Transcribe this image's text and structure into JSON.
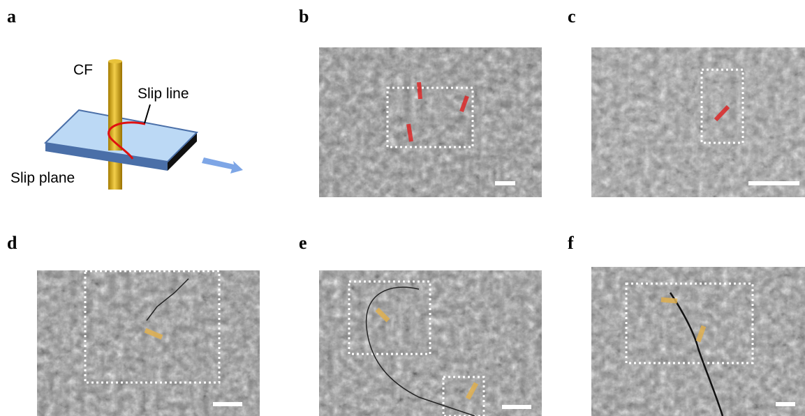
{
  "panels": [
    {
      "label": "a"
    },
    {
      "label": "b"
    },
    {
      "label": "c"
    },
    {
      "label": "d"
    },
    {
      "label": "e"
    },
    {
      "label": "f"
    }
  ],
  "diagram": {
    "rod_label": "CF",
    "line_label": "Slip line",
    "plane_label": "Slip plane"
  }
}
